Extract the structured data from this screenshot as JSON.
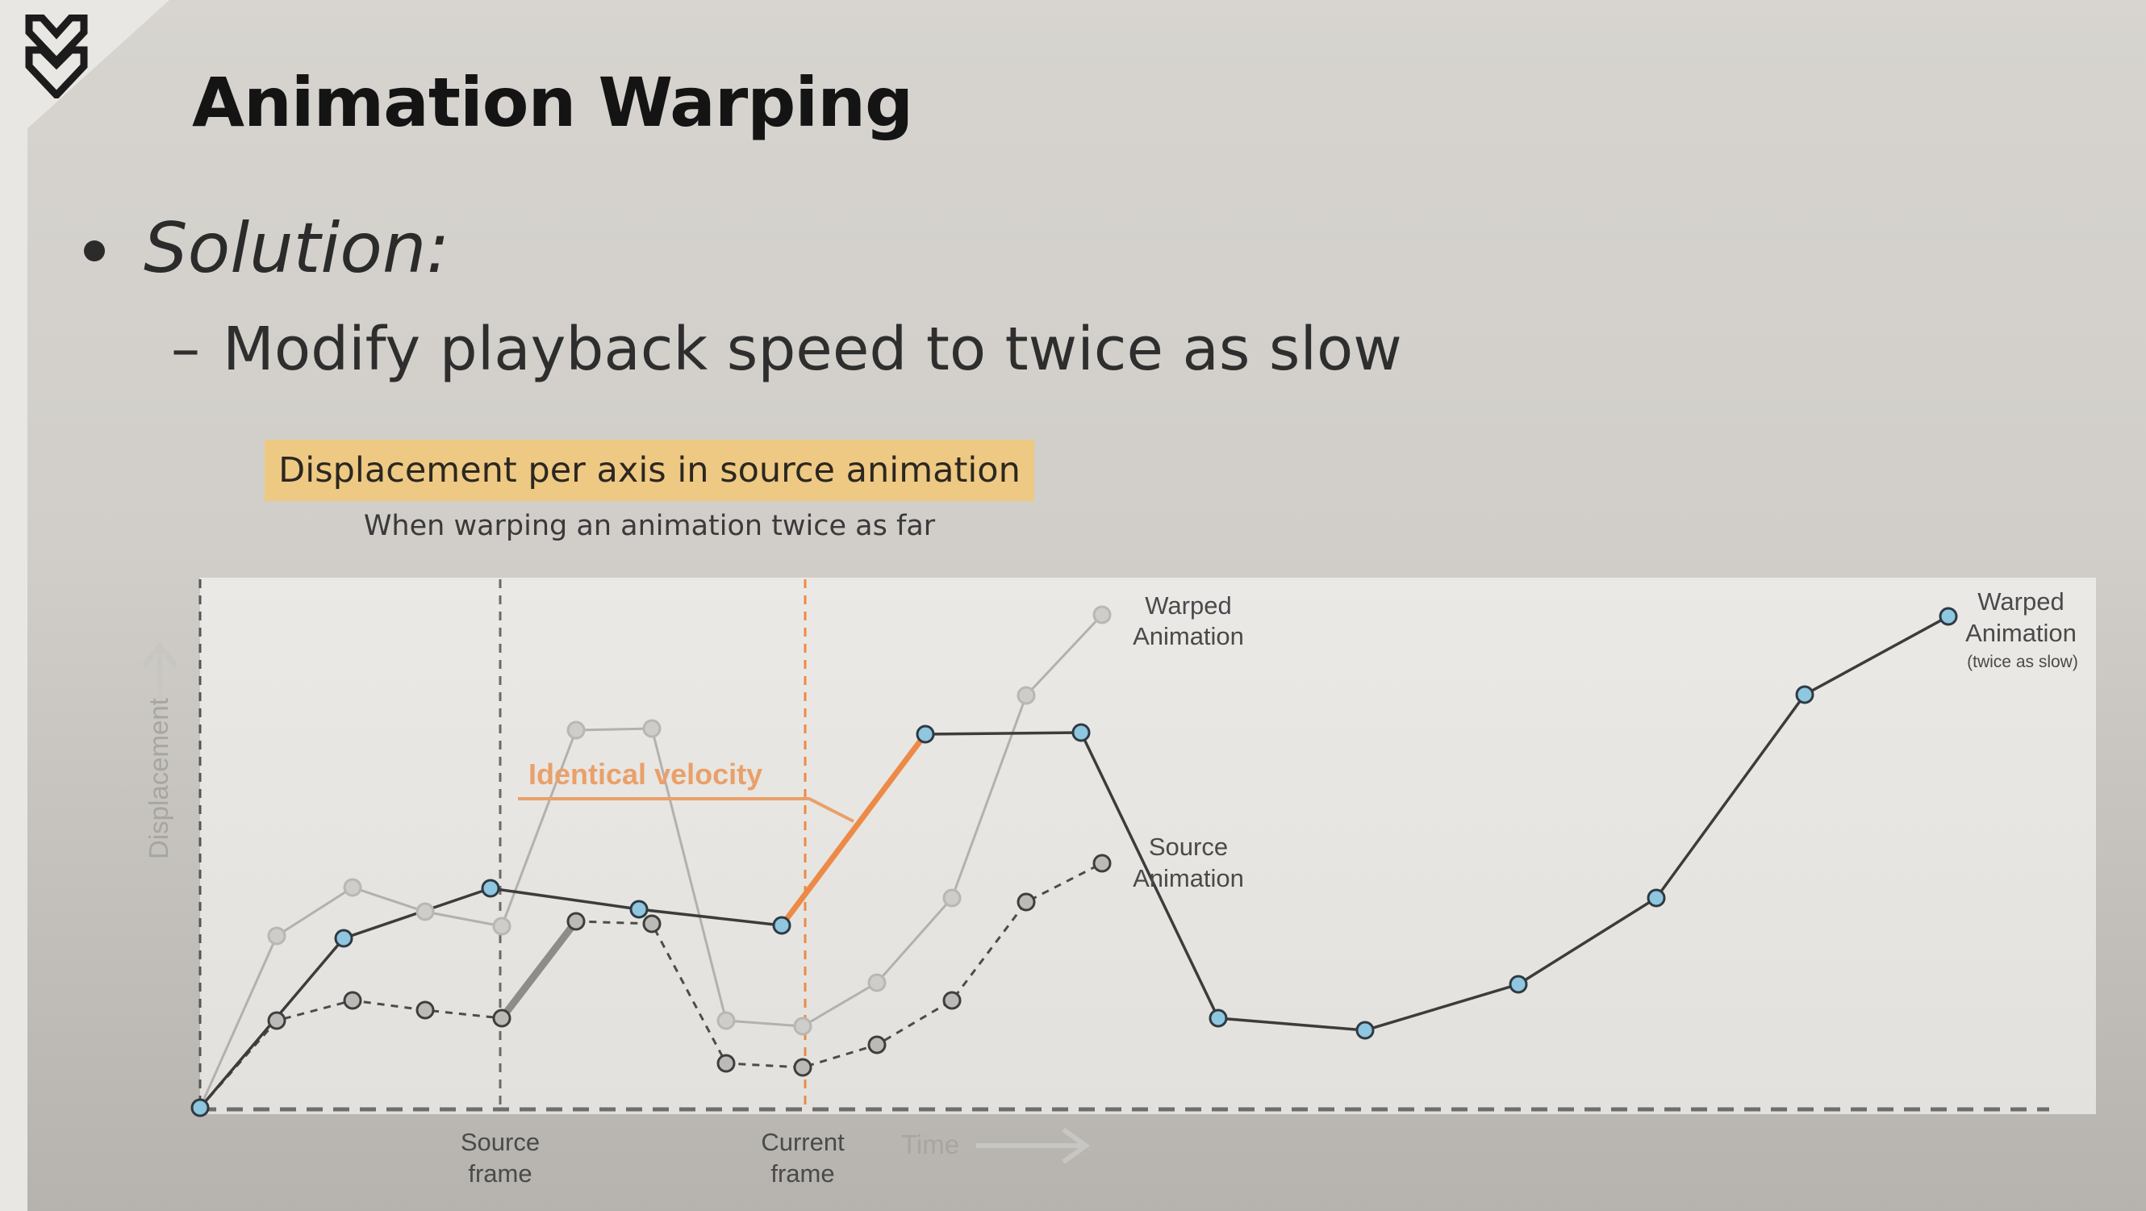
{
  "slide": {
    "title": "Animation Warping",
    "bullet": "Solution:",
    "sub_bullet_dash": "–",
    "sub_bullet": "Modify playback speed to twice as slow",
    "colors": {
      "accent_orange": "#ec8a46",
      "header_fill": "#eec983",
      "point_fill": "#8fc6e0"
    }
  },
  "diagram": {
    "header": "Displacement per axis in source animation",
    "subheader": "When warping an animation twice as far",
    "y_axis_label": "Displacement",
    "x_axis_label": "Time",
    "source_frame_label": [
      "Source",
      "frame"
    ],
    "current_frame_label": [
      "Current",
      "frame"
    ],
    "annotation": "Identical velocity",
    "warped_label": [
      "Warped",
      "Animation"
    ],
    "source_label": [
      "Source",
      "Animation"
    ],
    "slow_label": [
      "Warped",
      "Animation",
      "(twice as slow)"
    ],
    "series": [
      {
        "id": "source"
      },
      {
        "id": "warped"
      },
      {
        "id": "warped_slow"
      }
    ]
  }
}
